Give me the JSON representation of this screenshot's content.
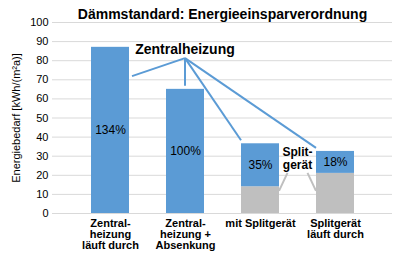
{
  "chart_data": {
    "type": "bar",
    "title": "Dämmstandard: Energieeinsparverordnung",
    "y_label": "Energiebedarf [kWh/(m²a)]",
    "categories": [
      "Zentral-\nheizung\nläuft durch",
      "Zentral-\nheizung +\nAbsenkung",
      "mit Splitgerät",
      "Splitgerät\nläuft durch"
    ],
    "series": [
      {
        "name": "Split-\ngerät",
        "color": "#bfbfbf",
        "values": [
          null,
          null,
          14,
          21
        ]
      },
      {
        "name": "Zentralheizung",
        "color": "#5b9bd5",
        "values": [
          87,
          65,
          22.5,
          11.5
        ],
        "share_labels": [
          "134%",
          "100%",
          "35%",
          "18%"
        ]
      }
    ],
    "stacked": true,
    "ylim": [
      0,
      100
    ],
    "yticks": [
      0,
      10,
      20,
      30,
      40,
      50,
      60,
      70,
      80,
      90,
      100
    ],
    "grid": true
  }
}
